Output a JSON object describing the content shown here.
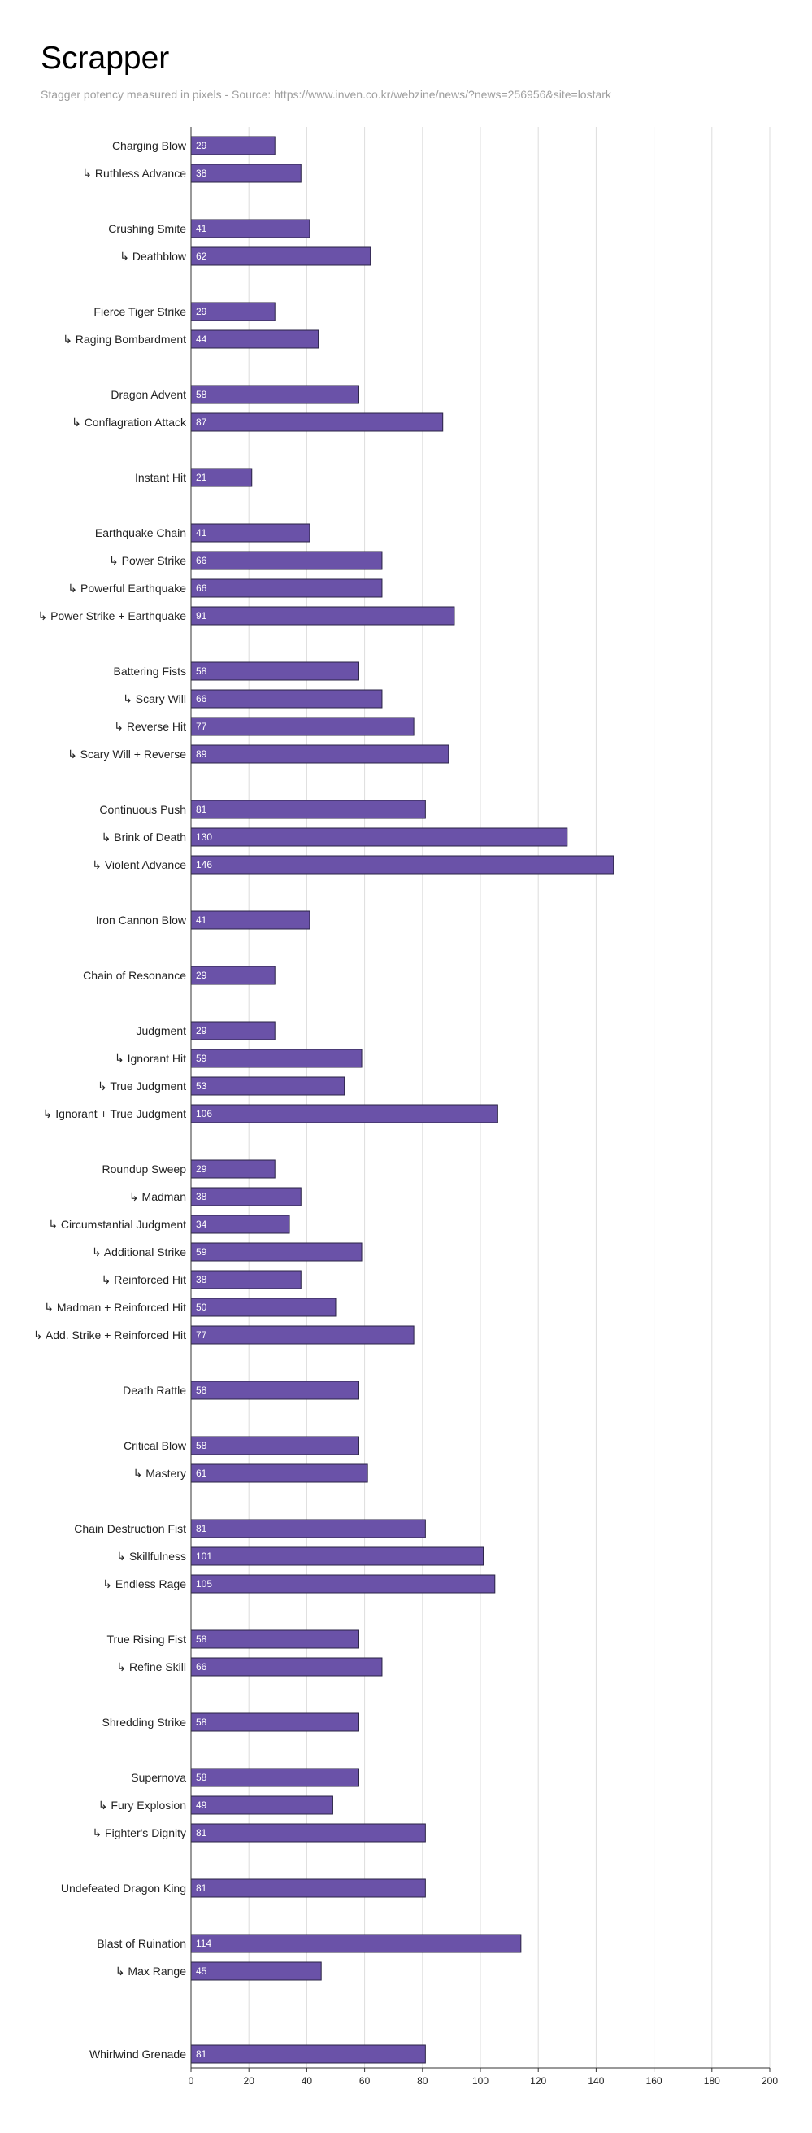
{
  "chart_data": {
    "type": "bar",
    "orientation": "horizontal",
    "title": "Scrapper",
    "subtitle": "Stagger potency measured in pixels - Source: https://www.inven.co.kr/webzine/news/?news=256956&site=lostark",
    "xlabel": "",
    "ylabel": "",
    "xlim": [
      0,
      200
    ],
    "x_ticks": [
      "0",
      "20",
      "40",
      "60",
      "80",
      "100",
      "120",
      "140",
      "160",
      "180",
      "200"
    ],
    "grid": "vertical",
    "legend": "none",
    "bar_color": "#6a52a8",
    "bar_border": "#2a2345",
    "grid_color": "#dddddd",
    "categories": [
      "Charging Blow",
      "↳ Ruthless Advance",
      "",
      "Crushing Smite",
      "↳ Deathblow",
      "",
      "Fierce Tiger Strike",
      "↳ Raging Bombardment",
      "",
      "Dragon Advent",
      "↳ Conflagration Attack",
      "",
      "Instant Hit",
      "",
      "Earthquake Chain",
      "↳ Power Strike",
      "↳ Powerful Earthquake",
      "↳ Power Strike + Earthquake",
      "",
      "Battering Fists",
      "↳ Scary Will",
      "↳ Reverse Hit",
      "↳ Scary Will + Reverse",
      "",
      "Continuous Push",
      "↳ Brink of Death",
      "↳ Violent Advance",
      "",
      "Iron Cannon Blow",
      "",
      "Chain of Resonance",
      "",
      "Judgment",
      "↳ Ignorant Hit",
      "↳ True Judgment",
      "↳ Ignorant  + True Judgment",
      "",
      "Roundup Sweep",
      "↳ Madman",
      "↳ Circumstantial Judgment",
      "↳ Additional Strike",
      "↳ Reinforced Hit",
      "↳ Madman + Reinforced Hit",
      "↳ Add. Strike + Reinforced Hit",
      "",
      "Death Rattle",
      "",
      "Critical Blow",
      "↳ Mastery",
      "",
      "Chain Destruction Fist",
      "↳ Skillfulness",
      "↳ Endless Rage",
      "",
      "True Rising Fist",
      "↳ Refine Skill",
      "",
      "Shredding Strike",
      "",
      "Supernova",
      "↳ Fury Explosion",
      "↳ Fighter's Dignity",
      "",
      "Undefeated Dragon King",
      "",
      "Blast of Ruination",
      "↳ Max Range",
      "",
      "",
      "Whirlwind Grenade"
    ],
    "values": [
      29,
      38,
      null,
      41,
      62,
      null,
      29,
      44,
      null,
      58,
      87,
      null,
      21,
      null,
      41,
      66,
      66,
      91,
      null,
      58,
      66,
      77,
      89,
      null,
      81,
      130,
      146,
      null,
      41,
      null,
      29,
      null,
      29,
      59,
      53,
      106,
      null,
      29,
      38,
      34,
      59,
      38,
      50,
      77,
      null,
      58,
      null,
      58,
      61,
      null,
      81,
      101,
      105,
      null,
      58,
      66,
      null,
      58,
      null,
      58,
      49,
      81,
      null,
      81,
      null,
      114,
      45,
      null,
      null,
      81
    ]
  }
}
